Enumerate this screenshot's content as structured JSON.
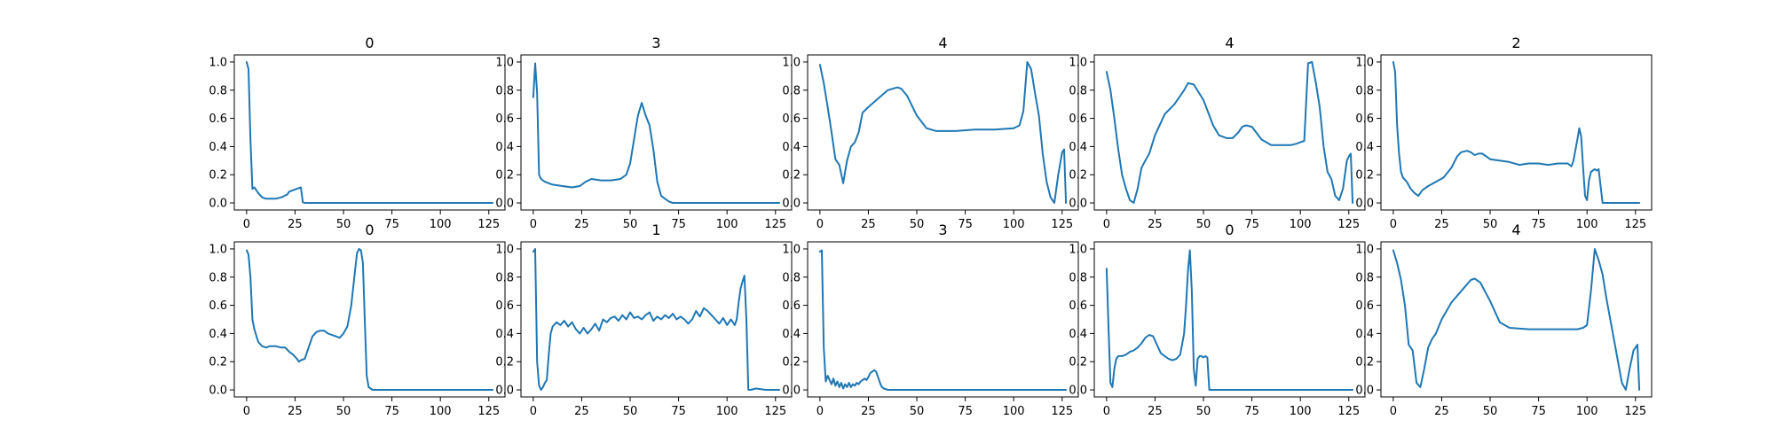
{
  "figure": {
    "background": "#ffffff",
    "line_color": "#1f77b4"
  },
  "chart_data": [
    {
      "type": "line",
      "title": "0",
      "xlim": [
        0,
        127
      ],
      "ylim": [
        0,
        1.0
      ],
      "xticks": [
        0,
        25,
        50,
        75,
        100,
        125
      ],
      "yticks": [
        0.0,
        0.2,
        0.4,
        0.6,
        0.8,
        1.0
      ],
      "x": [
        0,
        1,
        2,
        3,
        4,
        5,
        6,
        8,
        10,
        12,
        15,
        18,
        21,
        22,
        24,
        26,
        28,
        29,
        30,
        35,
        50,
        75,
        100,
        127
      ],
      "y": [
        1.0,
        0.95,
        0.45,
        0.1,
        0.11,
        0.09,
        0.07,
        0.04,
        0.03,
        0.03,
        0.03,
        0.04,
        0.06,
        0.08,
        0.09,
        0.1,
        0.11,
        0.005,
        0.0,
        0.0,
        0.0,
        0.0,
        0.0,
        0.0
      ]
    },
    {
      "type": "line",
      "title": "3",
      "xlim": [
        0,
        127
      ],
      "ylim": [
        0,
        1.0
      ],
      "xticks": [
        0,
        25,
        50,
        75,
        100,
        125
      ],
      "yticks": [
        0.0,
        0.2,
        0.4,
        0.6,
        0.8,
        1.0
      ],
      "x": [
        0,
        1,
        2,
        3,
        4,
        6,
        10,
        15,
        20,
        24,
        27,
        30,
        35,
        40,
        45,
        48,
        50,
        52,
        54,
        56,
        58,
        60,
        62,
        64,
        66,
        68,
        70,
        72,
        75,
        100,
        127
      ],
      "y": [
        0.75,
        0.99,
        0.78,
        0.2,
        0.17,
        0.15,
        0.13,
        0.12,
        0.11,
        0.12,
        0.15,
        0.17,
        0.16,
        0.16,
        0.17,
        0.2,
        0.28,
        0.45,
        0.62,
        0.71,
        0.62,
        0.55,
        0.38,
        0.15,
        0.05,
        0.03,
        0.01,
        0.0,
        0.0,
        0.0,
        0.0
      ]
    },
    {
      "type": "line",
      "title": "4",
      "xlim": [
        0,
        127
      ],
      "ylim": [
        0,
        1.0
      ],
      "xticks": [
        0,
        25,
        50,
        75,
        100,
        125
      ],
      "yticks": [
        0.0,
        0.2,
        0.4,
        0.6,
        0.8,
        1.0
      ],
      "x": [
        0,
        2,
        4,
        6,
        8,
        10,
        12,
        14,
        16,
        18,
        20,
        22,
        25,
        30,
        35,
        40,
        42,
        45,
        50,
        55,
        60,
        70,
        80,
        90,
        100,
        103,
        105,
        107,
        109,
        111,
        113,
        115,
        117,
        119,
        121,
        123,
        125,
        126,
        127
      ],
      "y": [
        0.98,
        0.85,
        0.68,
        0.5,
        0.31,
        0.27,
        0.14,
        0.3,
        0.4,
        0.43,
        0.5,
        0.64,
        0.68,
        0.74,
        0.8,
        0.82,
        0.81,
        0.76,
        0.62,
        0.53,
        0.51,
        0.51,
        0.52,
        0.52,
        0.53,
        0.55,
        0.65,
        1.0,
        0.95,
        0.78,
        0.62,
        0.35,
        0.15,
        0.04,
        0.0,
        0.2,
        0.36,
        0.38,
        0.0
      ]
    },
    {
      "type": "line",
      "title": "4",
      "xlim": [
        0,
        127
      ],
      "ylim": [
        0,
        1.0
      ],
      "xticks": [
        0,
        25,
        50,
        75,
        100,
        125
      ],
      "yticks": [
        0.0,
        0.2,
        0.4,
        0.6,
        0.8,
        1.0
      ],
      "x": [
        0,
        2,
        4,
        6,
        8,
        10,
        12,
        14,
        16,
        18,
        20,
        22,
        25,
        30,
        35,
        40,
        42,
        45,
        50,
        55,
        58,
        62,
        65,
        68,
        70,
        72,
        75,
        80,
        85,
        90,
        95,
        98,
        100,
        102,
        104,
        106,
        108,
        110,
        112,
        114,
        116,
        118,
        120,
        122,
        124,
        125,
        126,
        127
      ],
      "y": [
        0.93,
        0.8,
        0.6,
        0.38,
        0.2,
        0.1,
        0.02,
        0.0,
        0.1,
        0.25,
        0.3,
        0.35,
        0.48,
        0.63,
        0.7,
        0.8,
        0.85,
        0.84,
        0.73,
        0.55,
        0.48,
        0.46,
        0.46,
        0.5,
        0.54,
        0.55,
        0.54,
        0.45,
        0.41,
        0.41,
        0.41,
        0.42,
        0.43,
        0.44,
        0.99,
        1.0,
        0.85,
        0.68,
        0.4,
        0.22,
        0.17,
        0.05,
        0.02,
        0.1,
        0.3,
        0.33,
        0.35,
        0.0
      ]
    },
    {
      "type": "line",
      "title": "2",
      "xlim": [
        0,
        127
      ],
      "ylim": [
        0,
        1.0
      ],
      "xticks": [
        0,
        25,
        50,
        75,
        100,
        125
      ],
      "yticks": [
        0.0,
        0.2,
        0.4,
        0.6,
        0.8,
        1.0
      ],
      "x": [
        0,
        1,
        2,
        3,
        4,
        5,
        7,
        9,
        11,
        13,
        15,
        18,
        22,
        26,
        30,
        33,
        35,
        38,
        40,
        42,
        44,
        46,
        48,
        50,
        55,
        60,
        65,
        70,
        75,
        80,
        85,
        90,
        92,
        93,
        95,
        96,
        97,
        98,
        99,
        100,
        101,
        102,
        103,
        104,
        105,
        106,
        108,
        110,
        115,
        120,
        125,
        127
      ],
      "y": [
        1.0,
        0.93,
        0.55,
        0.35,
        0.22,
        0.18,
        0.15,
        0.1,
        0.07,
        0.05,
        0.09,
        0.12,
        0.15,
        0.18,
        0.25,
        0.33,
        0.36,
        0.37,
        0.36,
        0.34,
        0.35,
        0.35,
        0.33,
        0.31,
        0.3,
        0.29,
        0.27,
        0.28,
        0.28,
        0.27,
        0.28,
        0.28,
        0.26,
        0.3,
        0.45,
        0.53,
        0.47,
        0.25,
        0.05,
        0.02,
        0.16,
        0.22,
        0.23,
        0.24,
        0.23,
        0.24,
        0.0,
        0.0,
        0.0,
        0.0,
        0.0,
        0.0
      ]
    },
    {
      "type": "line",
      "title": "0",
      "xlim": [
        0,
        127
      ],
      "ylim": [
        0,
        1.0
      ],
      "xticks": [
        0,
        25,
        50,
        75,
        100,
        125
      ],
      "yticks": [
        0.0,
        0.2,
        0.4,
        0.6,
        0.8,
        1.0
      ],
      "x": [
        0,
        1,
        2,
        3,
        4,
        6,
        8,
        10,
        12,
        15,
        18,
        20,
        22,
        24,
        26,
        27,
        28,
        30,
        32,
        34,
        36,
        38,
        40,
        42,
        44,
        46,
        48,
        50,
        52,
        54,
        56,
        57,
        58,
        59,
        60,
        61,
        62,
        63,
        65,
        70,
        75,
        100,
        127
      ],
      "y": [
        0.99,
        0.96,
        0.8,
        0.5,
        0.43,
        0.34,
        0.31,
        0.3,
        0.31,
        0.31,
        0.3,
        0.3,
        0.27,
        0.25,
        0.22,
        0.2,
        0.21,
        0.22,
        0.3,
        0.38,
        0.41,
        0.42,
        0.42,
        0.4,
        0.39,
        0.38,
        0.37,
        0.4,
        0.45,
        0.6,
        0.85,
        0.97,
        1.0,
        0.99,
        0.9,
        0.5,
        0.1,
        0.02,
        0.0,
        0.0,
        0.0,
        0.0,
        0.0
      ]
    },
    {
      "type": "line",
      "title": "1",
      "xlim": [
        0,
        127
      ],
      "ylim": [
        0,
        1.0
      ],
      "xticks": [
        0,
        25,
        50,
        75,
        100,
        125
      ],
      "yticks": [
        0.0,
        0.2,
        0.4,
        0.6,
        0.8,
        1.0
      ],
      "x": [
        0,
        1,
        2,
        3,
        4,
        5,
        6,
        7,
        8,
        9,
        10,
        12,
        14,
        16,
        18,
        20,
        22,
        24,
        26,
        28,
        30,
        32,
        34,
        36,
        38,
        40,
        42,
        44,
        46,
        48,
        50,
        52,
        54,
        56,
        58,
        60,
        62,
        64,
        66,
        68,
        70,
        72,
        74,
        76,
        78,
        80,
        82,
        84,
        86,
        88,
        90,
        92,
        94,
        96,
        98,
        100,
        102,
        104,
        105,
        106,
        107,
        108,
        109,
        110,
        111,
        112,
        115,
        120,
        127
      ],
      "y": [
        0.98,
        1.0,
        0.2,
        0.03,
        0.0,
        0.02,
        0.05,
        0.07,
        0.25,
        0.4,
        0.45,
        0.48,
        0.46,
        0.49,
        0.45,
        0.48,
        0.43,
        0.4,
        0.44,
        0.4,
        0.43,
        0.47,
        0.42,
        0.5,
        0.48,
        0.51,
        0.52,
        0.49,
        0.53,
        0.5,
        0.55,
        0.51,
        0.52,
        0.5,
        0.53,
        0.55,
        0.49,
        0.52,
        0.5,
        0.53,
        0.51,
        0.54,
        0.5,
        0.52,
        0.5,
        0.47,
        0.5,
        0.56,
        0.52,
        0.58,
        0.56,
        0.53,
        0.5,
        0.47,
        0.51,
        0.46,
        0.5,
        0.46,
        0.5,
        0.62,
        0.72,
        0.77,
        0.81,
        0.5,
        0.0,
        0.0,
        0.01,
        0.0,
        0.0
      ]
    },
    {
      "type": "line",
      "title": "3",
      "xlim": [
        0,
        127
      ],
      "ylim": [
        0,
        1.0
      ],
      "xticks": [
        0,
        25,
        50,
        75,
        100,
        125
      ],
      "yticks": [
        0.0,
        0.2,
        0.4,
        0.6,
        0.8,
        1.0
      ],
      "x": [
        0,
        1,
        2,
        3,
        4,
        5,
        6,
        7,
        8,
        9,
        10,
        11,
        12,
        13,
        14,
        15,
        16,
        17,
        18,
        19,
        20,
        21,
        22,
        23,
        24,
        25,
        26,
        27,
        28,
        29,
        30,
        31,
        32,
        33,
        35,
        40,
        50,
        75,
        100,
        127
      ],
      "y": [
        0.98,
        0.99,
        0.3,
        0.06,
        0.1,
        0.07,
        0.04,
        0.08,
        0.03,
        0.06,
        0.02,
        0.05,
        0.01,
        0.04,
        0.02,
        0.05,
        0.02,
        0.04,
        0.03,
        0.05,
        0.04,
        0.06,
        0.07,
        0.08,
        0.07,
        0.09,
        0.12,
        0.13,
        0.14,
        0.13,
        0.09,
        0.05,
        0.02,
        0.01,
        0.0,
        0.0,
        0.0,
        0.0,
        0.0,
        0.0
      ]
    },
    {
      "type": "line",
      "title": "0",
      "xlim": [
        0,
        127
      ],
      "ylim": [
        0,
        1.0
      ],
      "xticks": [
        0,
        25,
        50,
        75,
        100,
        125
      ],
      "yticks": [
        0.0,
        0.2,
        0.4,
        0.6,
        0.8,
        1.0
      ],
      "x": [
        0,
        1,
        2,
        3,
        4,
        5,
        6,
        8,
        10,
        12,
        14,
        16,
        18,
        20,
        22,
        24,
        26,
        28,
        30,
        32,
        34,
        36,
        38,
        40,
        41,
        42,
        43,
        44,
        45,
        46,
        47,
        48,
        49,
        50,
        51,
        52,
        53,
        54,
        55,
        60,
        75,
        100,
        127
      ],
      "y": [
        0.86,
        0.45,
        0.05,
        0.02,
        0.15,
        0.22,
        0.24,
        0.24,
        0.25,
        0.27,
        0.28,
        0.3,
        0.33,
        0.37,
        0.39,
        0.38,
        0.32,
        0.26,
        0.24,
        0.22,
        0.21,
        0.22,
        0.25,
        0.4,
        0.6,
        0.85,
        0.99,
        0.7,
        0.15,
        0.03,
        0.22,
        0.24,
        0.24,
        0.23,
        0.24,
        0.23,
        0.0,
        0.0,
        0.0,
        0.0,
        0.0,
        0.0,
        0.0
      ]
    },
    {
      "type": "line",
      "title": "4",
      "xlim": [
        0,
        127
      ],
      "ylim": [
        0,
        1.0
      ],
      "xticks": [
        0,
        25,
        50,
        75,
        100,
        125
      ],
      "yticks": [
        0.0,
        0.2,
        0.4,
        0.6,
        0.8,
        1.0
      ],
      "x": [
        0,
        2,
        4,
        6,
        8,
        10,
        12,
        14,
        16,
        18,
        20,
        22,
        25,
        30,
        35,
        40,
        42,
        45,
        50,
        55,
        60,
        70,
        80,
        90,
        95,
        98,
        100,
        102,
        104,
        106,
        108,
        110,
        112,
        114,
        116,
        118,
        120,
        122,
        124,
        125,
        126,
        127
      ],
      "y": [
        0.99,
        0.9,
        0.78,
        0.6,
        0.32,
        0.28,
        0.05,
        0.02,
        0.15,
        0.3,
        0.36,
        0.4,
        0.5,
        0.62,
        0.7,
        0.78,
        0.79,
        0.76,
        0.63,
        0.48,
        0.44,
        0.43,
        0.43,
        0.43,
        0.43,
        0.44,
        0.46,
        0.7,
        1.0,
        0.92,
        0.82,
        0.65,
        0.5,
        0.35,
        0.2,
        0.05,
        0.0,
        0.15,
        0.28,
        0.3,
        0.32,
        0.0
      ]
    }
  ]
}
